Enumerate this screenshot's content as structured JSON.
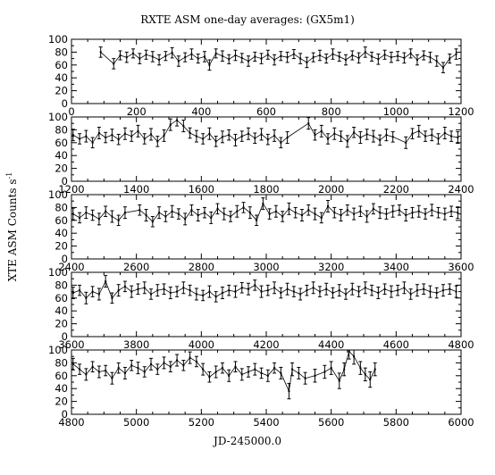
{
  "chart_data": {
    "type": "line",
    "title": "RXTE ASM one-day averages: (GX5m1)",
    "xlabel": "JD-245000.0",
    "ylabel": "XTE ASM Counts s",
    "ylabel_superscript": "-1",
    "error_bars": true,
    "grid": false,
    "colors": {
      "line": "#000000",
      "axes": "#000000",
      "background": "#ffffff"
    },
    "y_ticks": [
      "0",
      "20",
      "40",
      "60",
      "80",
      "100"
    ],
    "panels": [
      {
        "xlim": [
          0,
          1200
        ],
        "ylim": [
          0,
          100
        ],
        "x_ticks": [
          "0",
          "200",
          "400",
          "600",
          "800",
          "1000",
          "1200"
        ],
        "series": [
          {
            "x": [
              90,
              130,
              150,
              170,
              190,
              210,
              230,
              250,
              270,
              290,
              310,
              330,
              350,
              370,
              390,
              410,
              425,
              445,
              465,
              485,
              505,
              525,
              545,
              565,
              585,
              605,
              625,
              645,
              665,
              685,
              705,
              725,
              745,
              765,
              785,
              805,
              825,
              845,
              865,
              885,
              905,
              925,
              945,
              965,
              985,
              1005,
              1025,
              1045,
              1065,
              1085,
              1105,
              1125,
              1145,
              1165,
              1185
            ],
            "y": [
              80,
              62,
              75,
              72,
              78,
              70,
              76,
              73,
              68,
              74,
              79,
              66,
              72,
              77,
              70,
              73,
              60,
              78,
              74,
              69,
              75,
              71,
              66,
              73,
              70,
              76,
              68,
              74,
              72,
              77,
              70,
              64,
              72,
              75,
              70,
              77,
              73,
              68,
              75,
              71,
              80,
              73,
              69,
              76,
              72,
              74,
              71,
              78,
              68,
              75,
              72,
              66,
              56,
              70,
              77
            ],
            "err": [
              8,
              8,
              7,
              8,
              7,
              8,
              7,
              8,
              8,
              7,
              8,
              8,
              7,
              8,
              7,
              8,
              8,
              7,
              8,
              7,
              8,
              7,
              8,
              7,
              8,
              7,
              8,
              7,
              8,
              7,
              8,
              8,
              7,
              8,
              7,
              8,
              7,
              8,
              7,
              8,
              8,
              7,
              8,
              7,
              8,
              7,
              8,
              7,
              8,
              7,
              8,
              8,
              8,
              7,
              8
            ]
          }
        ]
      },
      {
        "xlim": [
          1200,
          2400
        ],
        "ylim": [
          0,
          100
        ],
        "x_ticks": [
          "1200",
          "1400",
          "1600",
          "1800",
          "2000",
          "2200",
          "2400"
        ],
        "series": [
          {
            "x": [
              1205,
              1225,
              1245,
              1265,
              1285,
              1305,
              1325,
              1345,
              1365,
              1385,
              1405,
              1425,
              1445,
              1465,
              1485,
              1505,
              1525,
              1545,
              1565,
              1585,
              1605,
              1625,
              1645,
              1665,
              1685,
              1705,
              1725,
              1745,
              1765,
              1785,
              1805,
              1825,
              1845,
              1865,
              1930,
              1950,
              1970,
              1990,
              2010,
              2030,
              2050,
              2070,
              2090,
              2110,
              2130,
              2150,
              2170,
              2190,
              2230,
              2250,
              2270,
              2290,
              2310,
              2330,
              2350,
              2370,
              2390
            ],
            "y": [
              72,
              66,
              70,
              60,
              75,
              68,
              72,
              65,
              74,
              70,
              78,
              66,
              73,
              62,
              71,
              88,
              95,
              86,
              75,
              70,
              66,
              74,
              62,
              69,
              72,
              64,
              70,
              74,
              67,
              73,
              65,
              71,
              60,
              68,
              90,
              72,
              78,
              66,
              74,
              70,
              62,
              76,
              68,
              73,
              70,
              64,
              72,
              69,
              60,
              74,
              78,
              70,
              72,
              66,
              75,
              70,
              68
            ],
            "err": [
              9,
              8,
              9,
              8,
              9,
              8,
              9,
              8,
              9,
              8,
              9,
              8,
              9,
              8,
              9,
              9,
              9,
              9,
              8,
              9,
              8,
              9,
              8,
              9,
              8,
              9,
              8,
              9,
              8,
              9,
              8,
              9,
              8,
              9,
              9,
              8,
              9,
              8,
              9,
              8,
              9,
              8,
              9,
              8,
              9,
              8,
              9,
              8,
              9,
              8,
              9,
              8,
              9,
              8,
              9,
              8,
              9
            ]
          }
        ]
      },
      {
        "xlim": [
          2400,
          3600
        ],
        "ylim": [
          0,
          100
        ],
        "x_ticks": [
          "2400",
          "2600",
          "2800",
          "3000",
          "3200",
          "3400",
          "3600"
        ],
        "series": [
          {
            "x": [
              2405,
              2425,
              2445,
              2465,
              2485,
              2505,
              2525,
              2545,
              2565,
              2610,
              2630,
              2650,
              2670,
              2690,
              2710,
              2730,
              2750,
              2770,
              2790,
              2810,
              2830,
              2850,
              2870,
              2890,
              2910,
              2930,
              2950,
              2970,
              2990,
              3010,
              3030,
              3050,
              3070,
              3090,
              3110,
              3130,
              3150,
              3170,
              3190,
              3210,
              3230,
              3250,
              3270,
              3290,
              3310,
              3330,
              3350,
              3370,
              3390,
              3410,
              3430,
              3450,
              3470,
              3490,
              3510,
              3530,
              3550,
              3570,
              3590
            ],
            "y": [
              70,
              64,
              72,
              68,
              62,
              74,
              66,
              60,
              72,
              76,
              68,
              58,
              72,
              66,
              74,
              70,
              62,
              76,
              68,
              72,
              64,
              78,
              70,
              66,
              74,
              80,
              72,
              60,
              86,
              70,
              74,
              66,
              78,
              72,
              68,
              76,
              70,
              64,
              82,
              72,
              68,
              76,
              70,
              74,
              66,
              78,
              72,
              70,
              74,
              76,
              68,
              72,
              74,
              70,
              76,
              72,
              70,
              74,
              72
            ],
            "err": [
              9,
              8,
              9,
              8,
              9,
              8,
              9,
              8,
              9,
              8,
              9,
              8,
              9,
              8,
              9,
              8,
              9,
              8,
              9,
              8,
              9,
              8,
              9,
              8,
              9,
              8,
              9,
              8,
              9,
              8,
              9,
              8,
              9,
              8,
              9,
              8,
              9,
              8,
              9,
              8,
              9,
              8,
              9,
              8,
              9,
              8,
              9,
              8,
              9,
              8,
              9,
              8,
              9,
              8,
              9,
              8,
              9,
              8,
              9
            ]
          }
        ]
      },
      {
        "xlim": [
          3600,
          4800
        ],
        "ylim": [
          0,
          100
        ],
        "x_ticks": [
          "3600",
          "3800",
          "4000",
          "4200",
          "4400",
          "4600",
          "4800"
        ],
        "series": [
          {
            "x": [
              3605,
              3625,
              3645,
              3665,
              3685,
              3705,
              3725,
              3745,
              3765,
              3785,
              3805,
              3825,
              3845,
              3865,
              3885,
              3905,
              3925,
              3945,
              3965,
              3985,
              4005,
              4025,
              4045,
              4065,
              4085,
              4105,
              4125,
              4145,
              4165,
              4185,
              4205,
              4225,
              4245,
              4265,
              4285,
              4305,
              4325,
              4345,
              4365,
              4385,
              4405,
              4425,
              4445,
              4465,
              4485,
              4505,
              4525,
              4545,
              4565,
              4585,
              4605,
              4625,
              4645,
              4665,
              4685,
              4705,
              4725,
              4745,
              4765,
              4785
            ],
            "y": [
              68,
              72,
              60,
              70,
              66,
              86,
              60,
              72,
              78,
              70,
              74,
              76,
              66,
              72,
              74,
              68,
              70,
              76,
              72,
              66,
              64,
              70,
              62,
              68,
              72,
              70,
              76,
              74,
              80,
              70,
              72,
              76,
              68,
              74,
              70,
              66,
              72,
              76,
              70,
              74,
              68,
              72,
              66,
              74,
              70,
              76,
              72,
              68,
              74,
              70,
              72,
              76,
              66,
              72,
              74,
              70,
              68,
              72,
              74,
              70
            ],
            "err": [
              9,
              8,
              9,
              8,
              9,
              9,
              8,
              9,
              8,
              9,
              8,
              9,
              8,
              9,
              8,
              9,
              8,
              9,
              8,
              9,
              8,
              9,
              8,
              9,
              8,
              9,
              8,
              9,
              8,
              9,
              8,
              9,
              8,
              9,
              8,
              9,
              8,
              9,
              8,
              9,
              8,
              9,
              8,
              9,
              8,
              9,
              8,
              9,
              8,
              9,
              8,
              9,
              8,
              9,
              8,
              9,
              8,
              9,
              8,
              9
            ]
          }
        ]
      },
      {
        "xlim": [
          4800,
          6000
        ],
        "ylim": [
          0,
          100
        ],
        "x_ticks": [
          "4800",
          "5000",
          "5200",
          "5400",
          "5600",
          "5800",
          "6000"
        ],
        "series": [
          {
            "x": [
              4805,
              4825,
              4845,
              4865,
              4885,
              4905,
              4925,
              4945,
              4965,
              4985,
              5005,
              5025,
              5045,
              5065,
              5085,
              5105,
              5125,
              5145,
              5165,
              5185,
              5205,
              5225,
              5245,
              5265,
              5285,
              5305,
              5325,
              5345,
              5365,
              5385,
              5405,
              5425,
              5445,
              5470,
              5480,
              5500,
              5520,
              5550,
              5580,
              5600,
              5625,
              5640,
              5655,
              5670,
              5690,
              5705,
              5720,
              5735
            ],
            "y": [
              78,
              70,
              62,
              74,
              66,
              68,
              56,
              72,
              64,
              76,
              72,
              66,
              78,
              70,
              80,
              74,
              84,
              76,
              88,
              82,
              70,
              58,
              66,
              72,
              60,
              74,
              62,
              66,
              70,
              64,
              60,
              72,
              64,
              36,
              70,
              64,
              56,
              60,
              66,
              72,
              52,
              70,
              98,
              90,
              72,
              62,
              54,
              70
            ],
            "err": [
              9,
              8,
              9,
              8,
              9,
              8,
              9,
              8,
              9,
              8,
              9,
              8,
              9,
              8,
              9,
              8,
              9,
              8,
              9,
              8,
              9,
              8,
              9,
              8,
              9,
              8,
              9,
              8,
              9,
              8,
              9,
              8,
              9,
              12,
              10,
              9,
              9,
              10,
              10,
              10,
              12,
              10,
              12,
              12,
              10,
              10,
              12,
              10
            ]
          }
        ]
      }
    ]
  }
}
